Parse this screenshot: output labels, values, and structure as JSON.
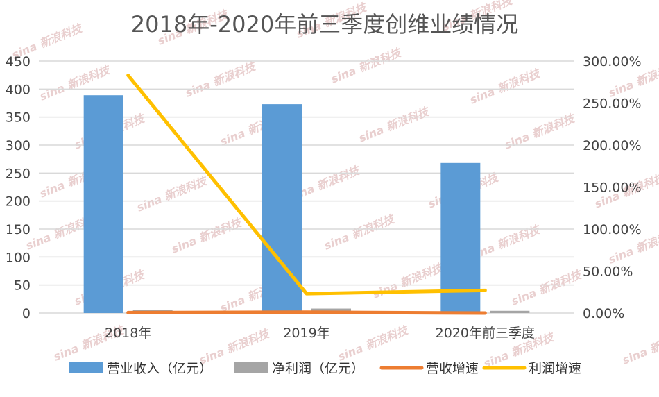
{
  "chart_data": {
    "type": "bar",
    "title": "2018年-2020年前三季度创维业绩情况",
    "categories": [
      "2018年",
      "2019年",
      "2020年前三季度"
    ],
    "y_left": {
      "ylim": [
        0,
        450
      ],
      "ticks": [
        0,
        50,
        100,
        150,
        200,
        250,
        300,
        350,
        400,
        450
      ]
    },
    "y_right": {
      "ylim": [
        0,
        3.0
      ],
      "ticks": [
        0,
        0.5,
        1.0,
        1.5,
        2.0,
        2.5,
        3.0
      ],
      "tick_labels": [
        "0.00%",
        "50.00%",
        "100.00%",
        "150.00%",
        "200.00%",
        "250.00%",
        "300.00%"
      ]
    },
    "grid": true,
    "legend_position": "bottom",
    "series": [
      {
        "name": "营业收入（亿元）",
        "kind": "bar",
        "axis": "left",
        "color": "#5b9bd5",
        "values": [
          389,
          373,
          268
        ]
      },
      {
        "name": "净利润（亿元）",
        "kind": "bar",
        "axis": "left",
        "color": "#a5a5a5",
        "values": [
          6,
          8,
          4
        ]
      },
      {
        "name": "营收增速",
        "kind": "line",
        "axis": "right",
        "color": "#ed7d31",
        "values": [
          0.005,
          0.01,
          0.0
        ]
      },
      {
        "name": "利润增速",
        "kind": "line",
        "axis": "right",
        "color": "#ffc000",
        "values": [
          2.83,
          0.23,
          0.27
        ]
      }
    ]
  },
  "watermark": {
    "text": "sina 新浪科技"
  }
}
